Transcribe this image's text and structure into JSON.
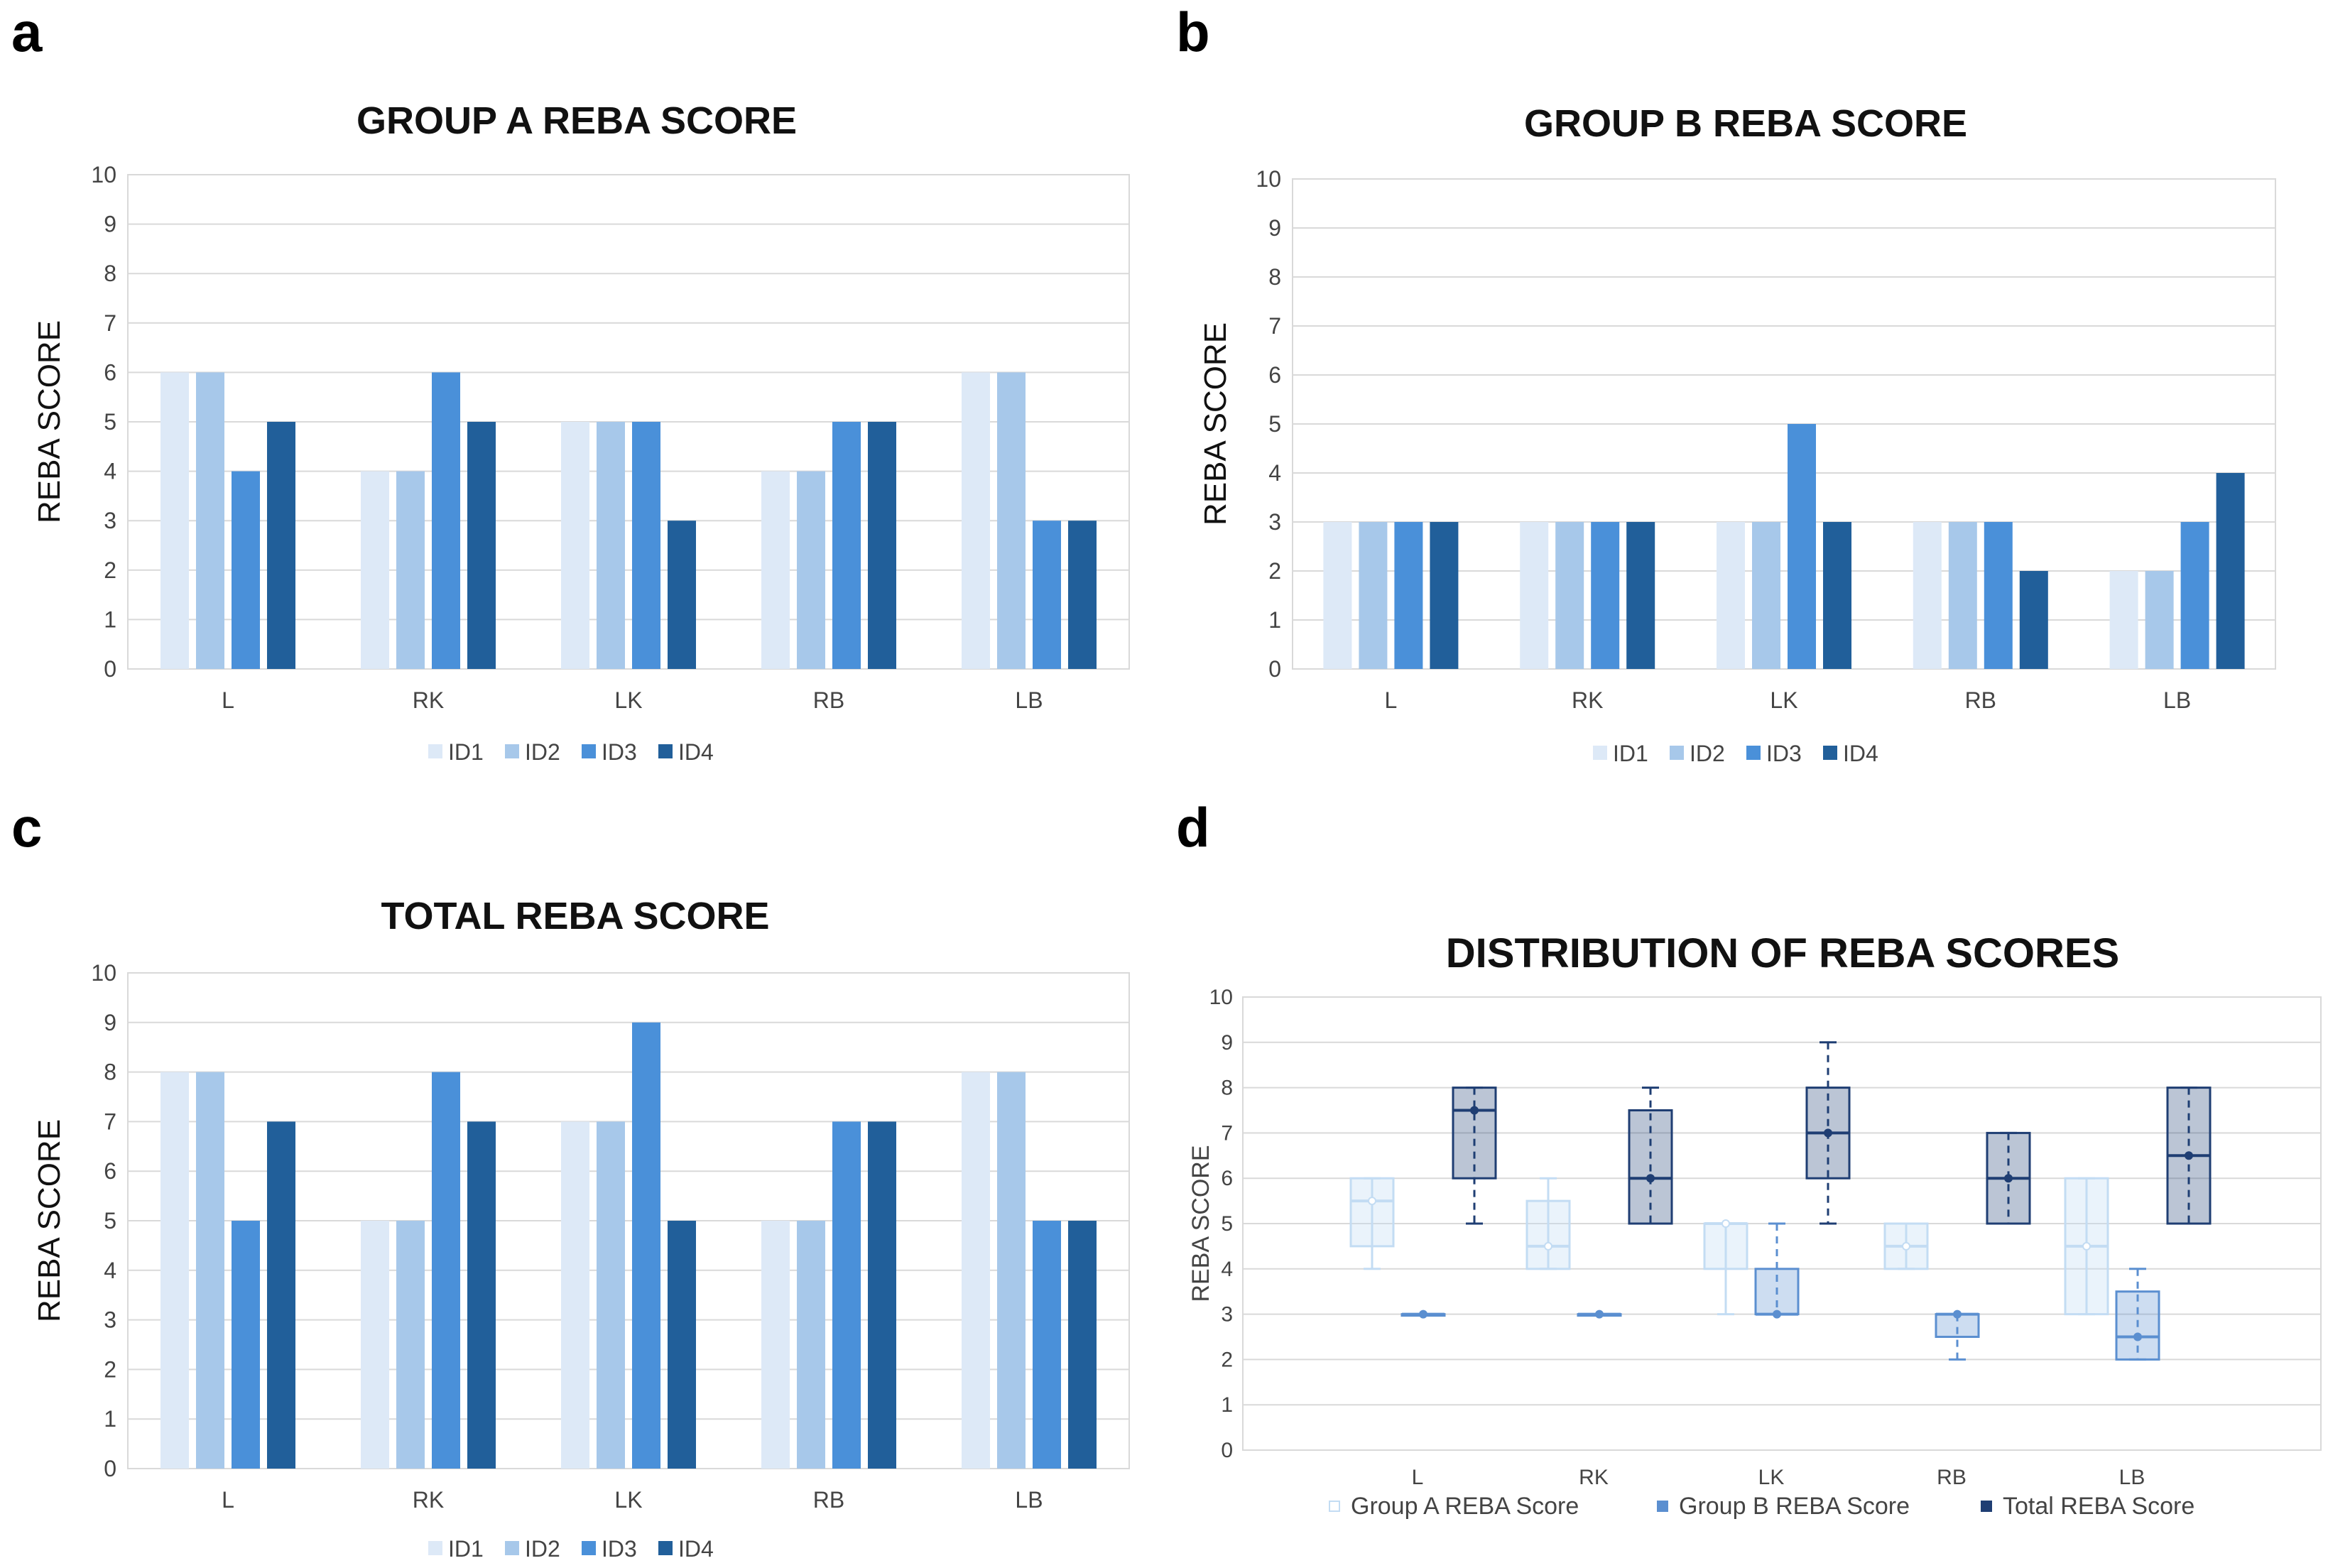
{
  "panels": [
    {
      "letter": "a"
    },
    {
      "letter": "b"
    },
    {
      "letter": "c"
    },
    {
      "letter": "d"
    }
  ],
  "colors": {
    "ID1": "#dde9f7",
    "ID2": "#a7c8ea",
    "ID3": "#4a90d9",
    "ID4": "#215f9a",
    "groupA": "#c3dcf3",
    "groupB": "#5b8fd0",
    "total": "#1f3e73",
    "grid": "#d9d9d9",
    "axis_text": "#444444"
  },
  "chart_data": [
    {
      "type": "bar",
      "title": "GROUP A REBA SCORE",
      "ylabel": "REBA SCORE",
      "xlabel": "",
      "ylim": [
        0,
        10
      ],
      "yticks": [
        "0",
        "1",
        "2",
        "3",
        "4",
        "5",
        "6",
        "7",
        "8",
        "9",
        "10"
      ],
      "grid": true,
      "legend_position": "bottom",
      "categories": [
        "L",
        "RK",
        "LK",
        "RB",
        "LB"
      ],
      "series": [
        {
          "name": "ID1",
          "values": [
            6,
            4,
            5,
            4,
            6
          ]
        },
        {
          "name": "ID2",
          "values": [
            6,
            4,
            5,
            4,
            6
          ]
        },
        {
          "name": "ID3",
          "values": [
            4,
            6,
            5,
            5,
            3
          ]
        },
        {
          "name": "ID4",
          "values": [
            5,
            5,
            3,
            5,
            3
          ]
        }
      ]
    },
    {
      "type": "bar",
      "title": "GROUP B REBA SCORE",
      "ylabel": "REBA SCORE",
      "xlabel": "",
      "ylim": [
        0,
        10
      ],
      "yticks": [
        "0",
        "1",
        "2",
        "3",
        "4",
        "5",
        "6",
        "7",
        "8",
        "9",
        "10"
      ],
      "grid": true,
      "legend_position": "bottom",
      "categories": [
        "L",
        "RK",
        "LK",
        "RB",
        "LB"
      ],
      "series": [
        {
          "name": "ID1",
          "values": [
            3,
            3,
            3,
            3,
            2
          ]
        },
        {
          "name": "ID2",
          "values": [
            3,
            3,
            3,
            3,
            2
          ]
        },
        {
          "name": "ID3",
          "values": [
            3,
            3,
            5,
            3,
            3
          ]
        },
        {
          "name": "ID4",
          "values": [
            3,
            3,
            3,
            2,
            4
          ]
        }
      ]
    },
    {
      "type": "bar",
      "title": "TOTAL REBA SCORE",
      "ylabel": "REBA SCORE",
      "xlabel": "",
      "ylim": [
        0,
        10
      ],
      "yticks": [
        "0",
        "1",
        "2",
        "3",
        "4",
        "5",
        "6",
        "7",
        "8",
        "9",
        "10"
      ],
      "grid": true,
      "legend_position": "bottom",
      "categories": [
        "L",
        "RK",
        "LK",
        "RB",
        "LB"
      ],
      "series": [
        {
          "name": "ID1",
          "values": [
            8,
            5,
            7,
            5,
            8
          ]
        },
        {
          "name": "ID2",
          "values": [
            8,
            5,
            7,
            5,
            8
          ]
        },
        {
          "name": "ID3",
          "values": [
            5,
            8,
            9,
            7,
            5
          ]
        },
        {
          "name": "ID4",
          "values": [
            7,
            7,
            5,
            7,
            5
          ]
        }
      ]
    },
    {
      "type": "box",
      "title": "DISTRIBUTION OF REBA SCORES",
      "ylabel": "REBA SCORE",
      "xlabel": "",
      "ylim": [
        0,
        10
      ],
      "yticks": [
        "0",
        "1",
        "2",
        "3",
        "4",
        "5",
        "6",
        "7",
        "8",
        "9",
        "10"
      ],
      "grid": true,
      "legend_position": "bottom",
      "categories": [
        "L",
        "RK",
        "LK",
        "RB",
        "LB"
      ],
      "series": [
        {
          "name": "Group A REBA Score",
          "boxes": [
            {
              "min": 4,
              "q1": 4.5,
              "median": 5.5,
              "q3": 6,
              "max": 6
            },
            {
              "min": 4,
              "q1": 4,
              "median": 4.5,
              "q3": 5.5,
              "max": 6
            },
            {
              "min": 3,
              "q1": 4,
              "median": 5,
              "q3": 5,
              "max": 5
            },
            {
              "min": 4,
              "q1": 4,
              "median": 4.5,
              "q3": 5,
              "max": 5
            },
            {
              "min": 3,
              "q1": 3,
              "median": 4.5,
              "q3": 6,
              "max": 6
            }
          ]
        },
        {
          "name": "Group B REBA Score",
          "boxes": [
            {
              "min": 3,
              "q1": 3,
              "median": 3,
              "q3": 3,
              "max": 3
            },
            {
              "min": 3,
              "q1": 3,
              "median": 3,
              "q3": 3,
              "max": 3
            },
            {
              "min": 3,
              "q1": 3,
              "median": 3,
              "q3": 4,
              "max": 5
            },
            {
              "min": 2,
              "q1": 2.5,
              "median": 3,
              "q3": 3,
              "max": 3
            },
            {
              "min": 2,
              "q1": 2,
              "median": 2.5,
              "q3": 3.5,
              "max": 4
            }
          ]
        },
        {
          "name": "Total REBA Score",
          "boxes": [
            {
              "min": 5,
              "q1": 6,
              "median": 7.5,
              "q3": 8,
              "max": 8
            },
            {
              "min": 5,
              "q1": 5,
              "median": 6,
              "q3": 7.5,
              "max": 8
            },
            {
              "min": 5,
              "q1": 6,
              "median": 7,
              "q3": 8,
              "max": 9
            },
            {
              "min": 5,
              "q1": 5,
              "median": 6,
              "q3": 7,
              "max": 7
            },
            {
              "min": 5,
              "q1": 5,
              "median": 6.5,
              "q3": 8,
              "max": 8
            }
          ]
        }
      ]
    }
  ]
}
